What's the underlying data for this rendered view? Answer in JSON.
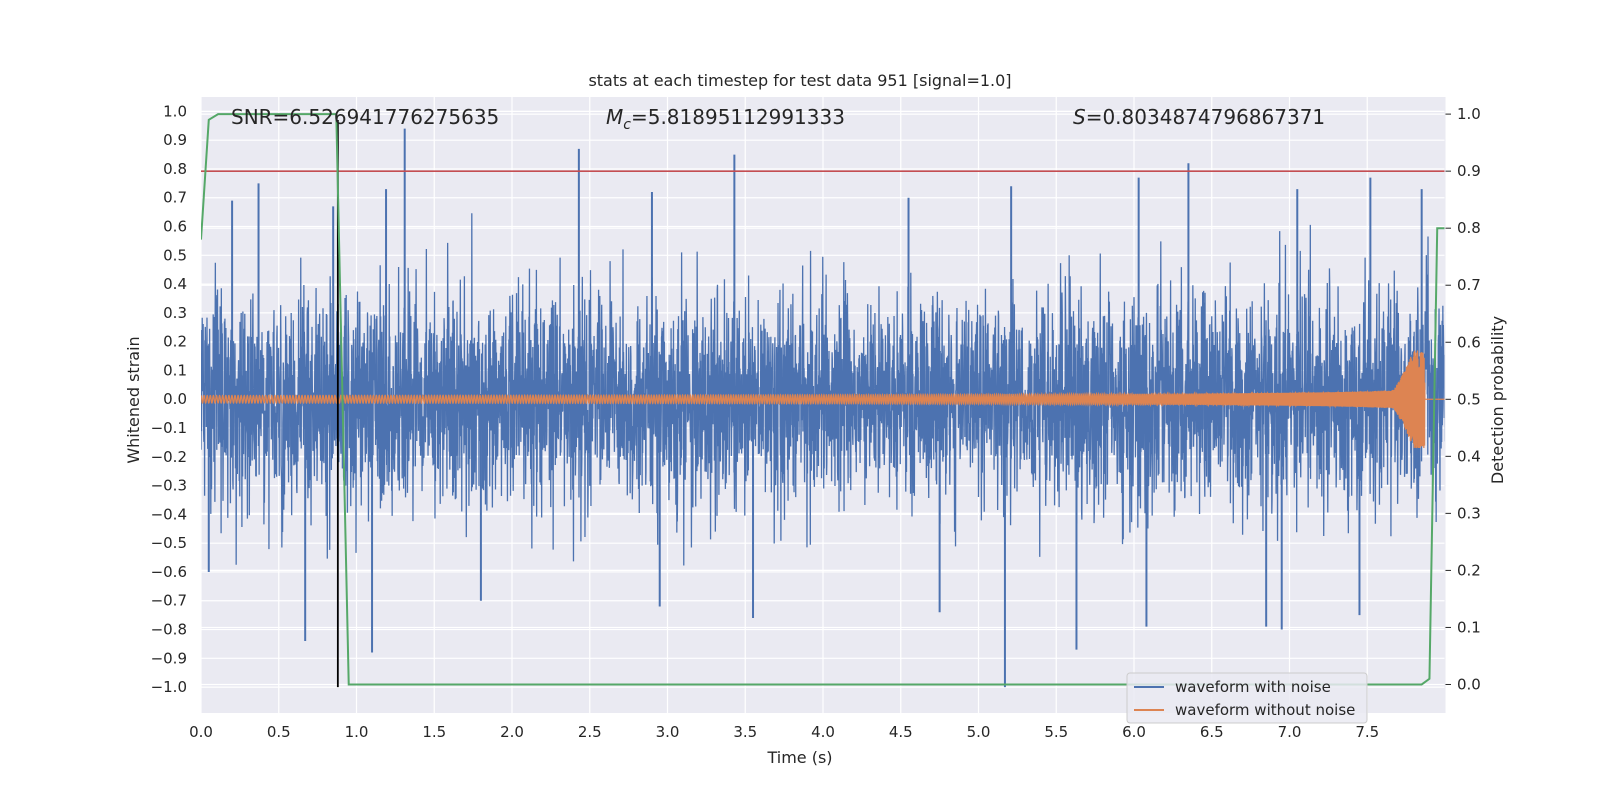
{
  "chart_data": {
    "type": "line",
    "title": "stats at each timestep for test data 951 [signal=1.0]",
    "xlabel": "Time (s)",
    "ylabel": "Whitened strain",
    "y2label": "Detection probability",
    "xlim": [
      0.0,
      8.0
    ],
    "ylim": [
      -1.09,
      1.05
    ],
    "y2lim": [
      -0.05,
      1.03
    ],
    "xticks": [
      0.0,
      0.5,
      1.0,
      1.5,
      2.0,
      2.5,
      3.0,
      3.5,
      4.0,
      4.5,
      5.0,
      5.5,
      6.0,
      6.5,
      7.0,
      7.5
    ],
    "xtick_labels": [
      "0.0",
      "0.5",
      "1.0",
      "1.5",
      "2.0",
      "2.5",
      "3.0",
      "3.5",
      "4.0",
      "4.5",
      "5.0",
      "5.5",
      "6.0",
      "6.5",
      "7.0",
      "7.5"
    ],
    "yticks": [
      -1.0,
      -0.9,
      -0.8,
      -0.7,
      -0.6,
      -0.5,
      -0.4,
      -0.3,
      -0.2,
      -0.1,
      0.0,
      0.1,
      0.2,
      0.3,
      0.4,
      0.5,
      0.6,
      0.7,
      0.8,
      0.9,
      1.0
    ],
    "ytick_labels": [
      "−1.0",
      "−0.9",
      "−0.8",
      "−0.7",
      "−0.6",
      "−0.5",
      "−0.4",
      "−0.3",
      "−0.2",
      "−0.1",
      "0.0",
      "0.1",
      "0.2",
      "0.3",
      "0.4",
      "0.5",
      "0.6",
      "0.7",
      "0.8",
      "0.9",
      "1.0"
    ],
    "y2ticks": [
      0.0,
      0.1,
      0.2,
      0.3,
      0.4,
      0.5,
      0.6,
      0.7,
      0.8,
      0.9,
      1.0
    ],
    "y2tick_labels": [
      "0.0",
      "0.1",
      "0.2",
      "0.3",
      "0.4",
      "0.5",
      "0.6",
      "0.7",
      "0.8",
      "0.9",
      "1.0"
    ],
    "annotations": {
      "snr": "SNR=6.526941776275635",
      "mc_symbol": "M",
      "mc_sub": "c",
      "mc_value": "=5.81895112991333",
      "s_symbol": "S",
      "s_value": "=0.8034874796867371"
    },
    "series": [
      {
        "name": "waveform with noise",
        "color": "#4c72b0",
        "axis": "left",
        "kind": "noise",
        "sigma": 0.18,
        "spikes": [
          [
            1.31,
            0.94
          ],
          [
            2.43,
            0.87
          ],
          [
            3.43,
            0.85
          ],
          [
            6.35,
            0.82
          ],
          [
            6.03,
            0.77
          ],
          [
            7.52,
            0.77
          ],
          [
            0.37,
            0.75
          ],
          [
            1.19,
            0.73
          ],
          [
            5.21,
            0.74
          ],
          [
            0.67,
            -0.84
          ],
          [
            1.1,
            -0.88
          ],
          [
            5.17,
            -1.0
          ],
          [
            5.63,
            -0.87
          ],
          [
            3.55,
            -0.76
          ],
          [
            6.08,
            -0.79
          ],
          [
            7.45,
            -0.75
          ],
          [
            4.75,
            -0.74
          ],
          [
            6.85,
            -0.79
          ],
          [
            0.2,
            0.69
          ],
          [
            2.9,
            0.72
          ],
          [
            4.55,
            0.7
          ],
          [
            7.05,
            0.73
          ],
          [
            1.8,
            -0.7
          ],
          [
            2.95,
            -0.72
          ],
          [
            6.95,
            -0.8
          ],
          [
            7.85,
            0.73
          ],
          [
            0.85,
            0.67
          ],
          [
            0.05,
            -0.6
          ]
        ]
      },
      {
        "name": "waveform without noise",
        "color": "#dd8452",
        "axis": "left",
        "kind": "chirp",
        "t_merger": 7.87,
        "amp_start": 0.013,
        "amp_peak": 0.17,
        "f_start": 50
      },
      {
        "name": "detection probability",
        "color": "#55a868",
        "axis": "right",
        "kind": "line",
        "x": [
          0.0,
          0.05,
          0.11,
          0.87,
          0.95,
          7.85,
          7.9,
          7.95,
          8.0
        ],
        "y": [
          0.78,
          0.99,
          1.0,
          1.0,
          0.0,
          0.0,
          0.01,
          0.8,
          0.8
        ]
      }
    ],
    "threshold": {
      "value": 0.9,
      "axis": "right",
      "color": "#c44e52"
    },
    "marker_line": {
      "x": 0.88,
      "y_from": -1.0,
      "y_to": 0.97,
      "color": "#000000"
    },
    "legend": {
      "location": "lower-right",
      "entries": [
        {
          "label": "waveform with noise",
          "color": "#4c72b0"
        },
        {
          "label": "waveform without noise",
          "color": "#dd8452"
        }
      ]
    },
    "grid": true
  },
  "colors": {
    "plot_bg": "#eaeaf2",
    "grid": "#ffffff",
    "text": "#262626"
  }
}
